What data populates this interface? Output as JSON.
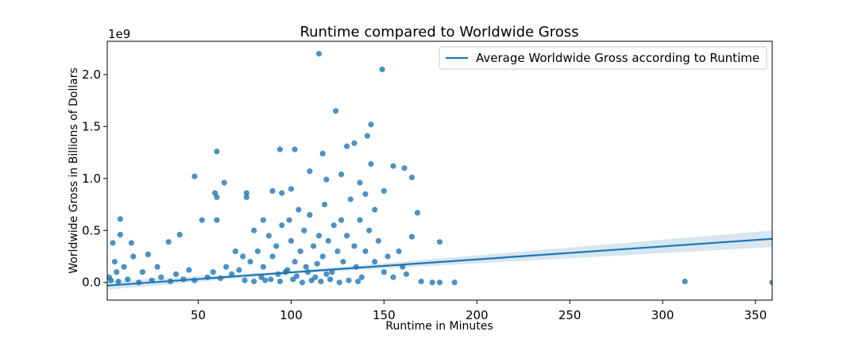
{
  "chart_data": {
    "type": "scatter",
    "title": "Runtime compared to Worldwide Gross",
    "xlabel": "Runtime in Minutes",
    "ylabel": "Worldwide Gross in Billions of Dollars",
    "y_offset_label": "1e9",
    "xlim": [
      1,
      359
    ],
    "ylim": [
      -0.17,
      2.32
    ],
    "xticks": [
      50,
      100,
      150,
      200,
      250,
      300,
      350
    ],
    "yticks": [
      {
        "value": 0,
        "label": "0.0"
      },
      {
        "value": 0.5,
        "label": "0.5"
      },
      {
        "value": 1,
        "label": "1.0"
      },
      {
        "value": 1.5,
        "label": "1.5"
      },
      {
        "value": 2,
        "label": "2.0"
      }
    ],
    "legend": "upper right",
    "scatter": {
      "color": "#1f77b4",
      "x": [
        115,
        149,
        124,
        143,
        141,
        134,
        130,
        117,
        143,
        155,
        161,
        60,
        94,
        102,
        48,
        64,
        59,
        60,
        76,
        76,
        90,
        95,
        8,
        8,
        4,
        14,
        23,
        34,
        40,
        52,
        60,
        110,
        119,
        127,
        137,
        150,
        165,
        168,
        180,
        165,
        312,
        359,
        188,
        180,
        176,
        170,
        5,
        10,
        20,
        30,
        3,
        7,
        12,
        18,
        25,
        35,
        42,
        48,
        55,
        62,
        68,
        72,
        78,
        82,
        85,
        88,
        90,
        92,
        95,
        97,
        99,
        100,
        102,
        104,
        105,
        107,
        108,
        110,
        112,
        113,
        115,
        117,
        118,
        120,
        122,
        123,
        125,
        127,
        128,
        130,
        132,
        134,
        135,
        137,
        138,
        140,
        142,
        145,
        147,
        150,
        152,
        155,
        158,
        160,
        162,
        140,
        145,
        100,
        85,
        80,
        86,
        94,
        101,
        106,
        111,
        116,
        121,
        126,
        131,
        136,
        75,
        80,
        84,
        89,
        93,
        98,
        103,
        109,
        114,
        119,
        70,
        74,
        65,
        58,
        45,
        38,
        28,
        15,
        2,
        6
      ],
      "values": [
        2.2,
        2.05,
        1.65,
        1.52,
        1.41,
        1.34,
        1.31,
        1.24,
        1.14,
        1.12,
        1.1,
        1.26,
        1.28,
        1.28,
        1.02,
        0.96,
        0.86,
        0.82,
        0.86,
        0.82,
        0.88,
        0.86,
        0.61,
        0.46,
        0.38,
        0.38,
        0.27,
        0.39,
        0.46,
        0.6,
        0.6,
        1.07,
        0.99,
        1.04,
        0.96,
        0.88,
        1.01,
        0.67,
        0.39,
        0.44,
        0.01,
        0,
        0,
        0,
        0,
        0.01,
        0.2,
        0.15,
        0.1,
        0.05,
        0.02,
        0.01,
        0.03,
        0,
        0.02,
        0.01,
        0.03,
        0.02,
        0.05,
        0.04,
        0.08,
        0.12,
        0.2,
        0.3,
        0.15,
        0.45,
        0.25,
        0.35,
        0.55,
        0.1,
        0.6,
        0.4,
        0.2,
        0.7,
        0.3,
        0.5,
        0.15,
        0.65,
        0.35,
        0.05,
        0.45,
        0.25,
        0.75,
        0.4,
        0.1,
        0.55,
        0.3,
        0.6,
        0.2,
        0.45,
        0.8,
        0.35,
        0.15,
        0.6,
        0.05,
        0.3,
        0.5,
        0.2,
        0.4,
        0.1,
        0.25,
        0.05,
        0.3,
        0.15,
        0.08,
        0.85,
        0.7,
        0.9,
        0.6,
        0.5,
        0.02,
        0.01,
        0.03,
        0,
        0.02,
        0.01,
        0.03,
        0,
        0.02,
        0.01,
        0.02,
        0.01,
        0.05,
        0.03,
        0.08,
        0.12,
        0.06,
        0.1,
        0.18,
        0.08,
        0.3,
        0.25,
        0.15,
        0.1,
        0.12,
        0.08,
        0.15,
        0.25,
        0.05,
        0.1
      ]
    },
    "series": [
      {
        "name": "Average Worldwide Gross according to Runtime",
        "color": "#1f77b4",
        "x": [
          1,
          100,
          359
        ],
        "values": [
          -0.03,
          0.097,
          0.42
        ],
        "ci_lower": [
          -0.07,
          0.085,
          0.34
        ],
        "ci_upper": [
          0.01,
          0.11,
          0.5
        ]
      }
    ]
  }
}
